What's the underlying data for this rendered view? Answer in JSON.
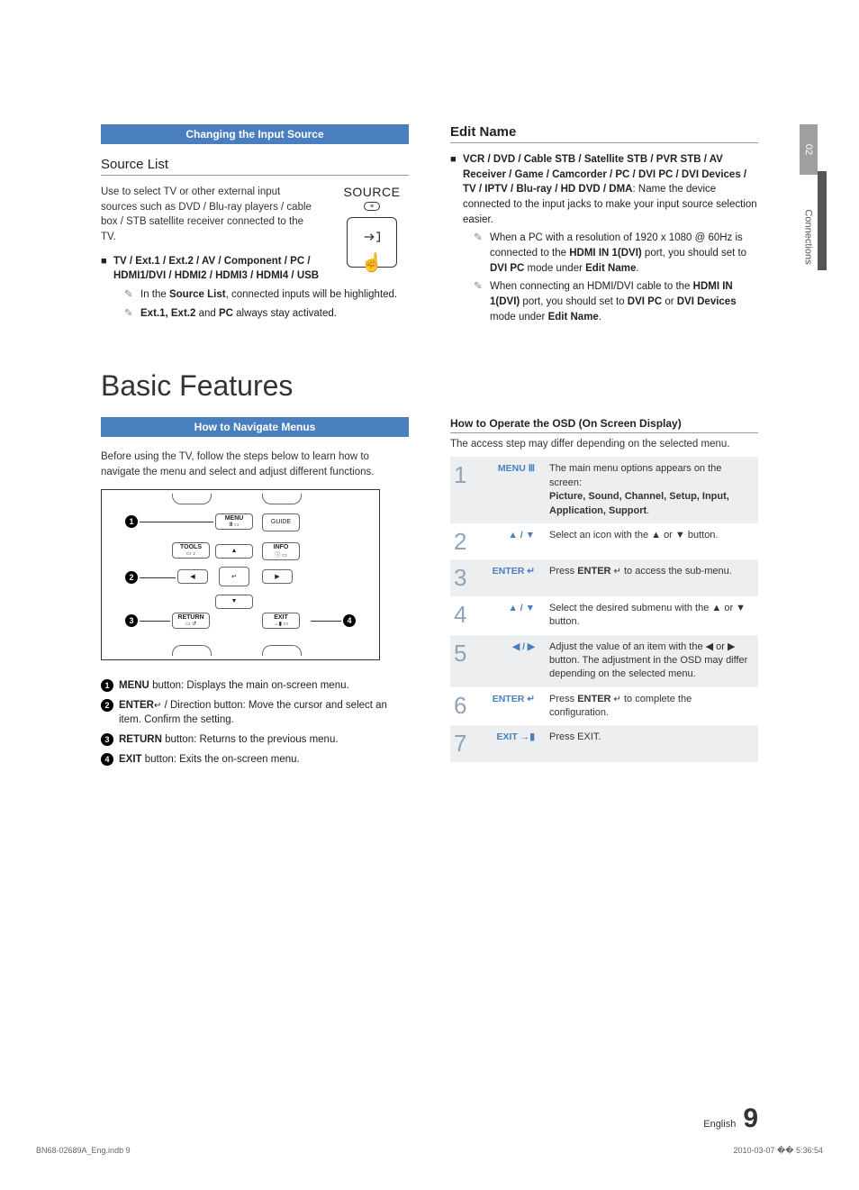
{
  "sectionTab": {
    "chapter": "02",
    "label": "Connections"
  },
  "colors": {
    "accent": "#4a7fbf",
    "tabGray": "#9f9f9f",
    "bigNum": "#8fa4b8"
  },
  "left1": {
    "bar": "Changing the Input Source",
    "heading": "Source List",
    "body": "Use to select TV or other external input sources such as DVD / Blu-ray players / cable box / STB satellite receiver connected to the TV.",
    "bulletBold": "TV / Ext.1 / Ext.2 / AV / Component / PC / HDMI1/DVI / HDMI2 / HDMI3 / HDMI4 / USB",
    "note1a": "In the ",
    "note1b": "Source List",
    "note1c": ", connected inputs will be highlighted.",
    "note2a": "Ext.1, Ext.2",
    "note2b": " and ",
    "note2c": "PC",
    "note2d": " always stay activated.",
    "sourceLabel": "SOURCE"
  },
  "right1": {
    "heading": "Edit Name",
    "bulletBold": "VCR / DVD / Cable STB / Satellite STB / PVR STB / AV Receiver / Game / Camcorder / PC / DVI PC / DVI Devices / TV / IPTV / Blu-ray / HD DVD / DMA",
    "bulletTail": ": Name the device connected to the input jacks to make your input source selection easier.",
    "note1": "When a PC with a resolution of 1920 x 1080 @ 60Hz is connected to the ",
    "note1b": "HDMI IN 1(DVI)",
    "note1c": " port, you should set to ",
    "note1d": "DVI PC",
    "note1e": " mode under ",
    "note1f": "Edit Name",
    "note1g": ".",
    "note2": "When connecting an HDMI/DVI cable to the ",
    "note2b": "HDMI IN 1(DVI)",
    "note2c": " port, you should set to ",
    "note2d": "DVI PC",
    "note2e": " or ",
    "note2f": "DVI Devices",
    "note2g": " mode under ",
    "note2h": "Edit Name",
    "note2i": "."
  },
  "bigTitle": "Basic Features",
  "left2": {
    "bar": "How to Navigate Menus",
    "intro": "Before using the TV, follow the steps below to learn how to navigate the menu and select and adjust different functions.",
    "remoteBtns": {
      "menu": "MENU",
      "guide": "GUIDE",
      "tools": "TOOLS",
      "info": "INFO",
      "return": "RETURN",
      "exit": "EXIT"
    },
    "legend": [
      {
        "n": "1",
        "boldLead": "MENU",
        "text": " button: Displays the main on-screen menu."
      },
      {
        "n": "2",
        "boldLead": "ENTER",
        "glyph": "↵",
        "text": " / Direction button: Move the cursor and select an item. Confirm the setting."
      },
      {
        "n": "3",
        "boldLead": "RETURN",
        "text": " button: Returns to the previous menu."
      },
      {
        "n": "4",
        "boldLead": "EXIT",
        "text": " button: Exits the on-screen menu."
      }
    ]
  },
  "right2": {
    "heading": "How to Operate the OSD (On Screen Display)",
    "intro": "The access step may differ depending on the selected menu.",
    "steps": [
      {
        "n": "1",
        "ctrl": "MENU Ⅲ",
        "desc": "The main menu options appears on the screen:",
        "bold": "Picture, Sound, Channel, Setup, Input, Application, Support",
        "tail": "."
      },
      {
        "n": "2",
        "ctrl": "▲ / ▼",
        "desc": "Select an icon with the ▲ or ▼ button."
      },
      {
        "n": "3",
        "ctrl": "ENTER ↵",
        "desc": "Press ",
        "boldInline": "ENTER",
        "glyph": "↵",
        "tail": " to access the sub-menu."
      },
      {
        "n": "4",
        "ctrl": "▲ / ▼",
        "desc": "Select the desired submenu with the ▲ or ▼ button."
      },
      {
        "n": "5",
        "ctrl": "◀ / ▶",
        "desc": "Adjust the value of an item with the ◀ or ▶ button. The adjustment in the OSD may differ depending on the selected menu."
      },
      {
        "n": "6",
        "ctrl": "ENTER ↵",
        "desc": "Press ",
        "boldInline": "ENTER",
        "glyph": "↵",
        "tail": " to complete the configuration."
      },
      {
        "n": "7",
        "ctrl": "EXIT →▮",
        "desc": "Press EXIT."
      }
    ]
  },
  "footer": {
    "lang": "English",
    "page": "9",
    "leftImprint": "BN68-02689A_Eng.indb   9",
    "rightImprint": "2010-03-07   �� 5:36:54"
  }
}
